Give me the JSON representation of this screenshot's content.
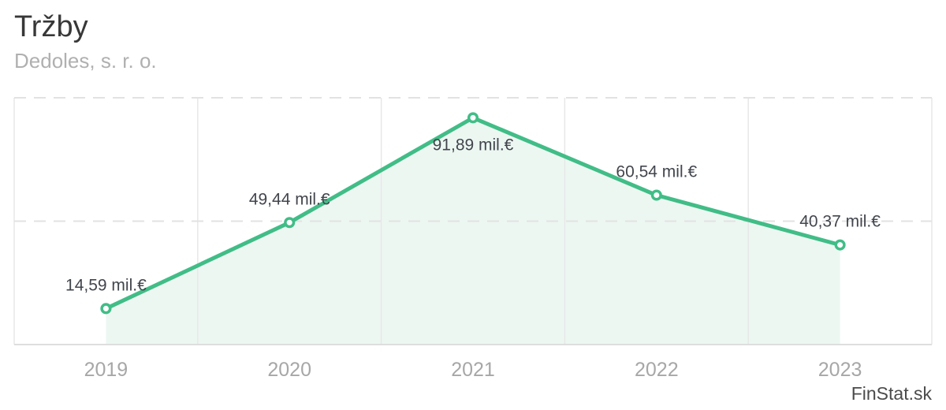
{
  "header": {
    "title": "Tržby",
    "subtitle": "Dedoles, s. r. o."
  },
  "watermark": {
    "label": "FinStat.sk"
  },
  "chart_data": {
    "type": "line",
    "title": "Tržby",
    "subtitle": "Dedoles, s. r. o.",
    "categories": [
      "2019",
      "2020",
      "2021",
      "2022",
      "2023"
    ],
    "values": [
      14.59,
      49.44,
      91.89,
      60.54,
      40.37
    ],
    "value_labels": [
      "14,59 mil.€",
      "49,44 mil.€",
      "91,89 mil.€",
      "60,54 mil.€",
      "40,37 mil.€"
    ],
    "label_placement": [
      "above",
      "above",
      "below",
      "above",
      "above"
    ],
    "unit": "mil.€",
    "xlabel": "",
    "ylabel": "",
    "ylim": [
      0,
      100
    ],
    "y_gridlines_dashed": [
      50,
      100
    ],
    "grid": {
      "horizontal": "dashed",
      "vertical": "solid column separators",
      "y_axis_labels": "hidden"
    },
    "legend": "none",
    "area_fill": true,
    "colors": {
      "line": "#41bd87",
      "area": "#edf7f2",
      "marker_fill": "#ffffff",
      "grid_dashed": "#e2e2e2",
      "grid_solid": "#e7e7e7",
      "baseline": "#dedede",
      "value_label": "#42464d",
      "axis_label": "#a7a7a7"
    }
  },
  "colors": {
    "background": "#ffffff",
    "title": "#383838",
    "subtitle": "#b0b0b0",
    "watermark": "#4b4b4b"
  }
}
